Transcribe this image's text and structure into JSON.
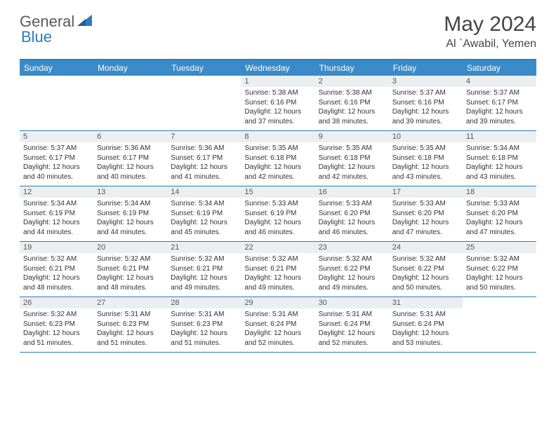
{
  "logo": {
    "text1": "General",
    "text2": "Blue"
  },
  "title": "May 2024",
  "location": "Al `Awabil, Yemen",
  "day_headers": [
    "Sunday",
    "Monday",
    "Tuesday",
    "Wednesday",
    "Thursday",
    "Friday",
    "Saturday"
  ],
  "header_bg": "#3b8bc9",
  "border_color": "#2b7bbf",
  "daynum_bg": "#eceff2",
  "weeks": [
    [
      {
        "n": "",
        "sr": "",
        "ss": "",
        "dl": ""
      },
      {
        "n": "",
        "sr": "",
        "ss": "",
        "dl": ""
      },
      {
        "n": "",
        "sr": "",
        "ss": "",
        "dl": ""
      },
      {
        "n": "1",
        "sr": "5:38 AM",
        "ss": "6:16 PM",
        "dl": "12 hours and 37 minutes."
      },
      {
        "n": "2",
        "sr": "5:38 AM",
        "ss": "6:16 PM",
        "dl": "12 hours and 38 minutes."
      },
      {
        "n": "3",
        "sr": "5:37 AM",
        "ss": "6:16 PM",
        "dl": "12 hours and 39 minutes."
      },
      {
        "n": "4",
        "sr": "5:37 AM",
        "ss": "6:17 PM",
        "dl": "12 hours and 39 minutes."
      }
    ],
    [
      {
        "n": "5",
        "sr": "5:37 AM",
        "ss": "6:17 PM",
        "dl": "12 hours and 40 minutes."
      },
      {
        "n": "6",
        "sr": "5:36 AM",
        "ss": "6:17 PM",
        "dl": "12 hours and 40 minutes."
      },
      {
        "n": "7",
        "sr": "5:36 AM",
        "ss": "6:17 PM",
        "dl": "12 hours and 41 minutes."
      },
      {
        "n": "8",
        "sr": "5:35 AM",
        "ss": "6:18 PM",
        "dl": "12 hours and 42 minutes."
      },
      {
        "n": "9",
        "sr": "5:35 AM",
        "ss": "6:18 PM",
        "dl": "12 hours and 42 minutes."
      },
      {
        "n": "10",
        "sr": "5:35 AM",
        "ss": "6:18 PM",
        "dl": "12 hours and 43 minutes."
      },
      {
        "n": "11",
        "sr": "5:34 AM",
        "ss": "6:18 PM",
        "dl": "12 hours and 43 minutes."
      }
    ],
    [
      {
        "n": "12",
        "sr": "5:34 AM",
        "ss": "6:19 PM",
        "dl": "12 hours and 44 minutes."
      },
      {
        "n": "13",
        "sr": "5:34 AM",
        "ss": "6:19 PM",
        "dl": "12 hours and 44 minutes."
      },
      {
        "n": "14",
        "sr": "5:34 AM",
        "ss": "6:19 PM",
        "dl": "12 hours and 45 minutes."
      },
      {
        "n": "15",
        "sr": "5:33 AM",
        "ss": "6:19 PM",
        "dl": "12 hours and 46 minutes."
      },
      {
        "n": "16",
        "sr": "5:33 AM",
        "ss": "6:20 PM",
        "dl": "12 hours and 46 minutes."
      },
      {
        "n": "17",
        "sr": "5:33 AM",
        "ss": "6:20 PM",
        "dl": "12 hours and 47 minutes."
      },
      {
        "n": "18",
        "sr": "5:33 AM",
        "ss": "6:20 PM",
        "dl": "12 hours and 47 minutes."
      }
    ],
    [
      {
        "n": "19",
        "sr": "5:32 AM",
        "ss": "6:21 PM",
        "dl": "12 hours and 48 minutes."
      },
      {
        "n": "20",
        "sr": "5:32 AM",
        "ss": "6:21 PM",
        "dl": "12 hours and 48 minutes."
      },
      {
        "n": "21",
        "sr": "5:32 AM",
        "ss": "6:21 PM",
        "dl": "12 hours and 49 minutes."
      },
      {
        "n": "22",
        "sr": "5:32 AM",
        "ss": "6:21 PM",
        "dl": "12 hours and 49 minutes."
      },
      {
        "n": "23",
        "sr": "5:32 AM",
        "ss": "6:22 PM",
        "dl": "12 hours and 49 minutes."
      },
      {
        "n": "24",
        "sr": "5:32 AM",
        "ss": "6:22 PM",
        "dl": "12 hours and 50 minutes."
      },
      {
        "n": "25",
        "sr": "5:32 AM",
        "ss": "6:22 PM",
        "dl": "12 hours and 50 minutes."
      }
    ],
    [
      {
        "n": "26",
        "sr": "5:32 AM",
        "ss": "6:23 PM",
        "dl": "12 hours and 51 minutes."
      },
      {
        "n": "27",
        "sr": "5:31 AM",
        "ss": "6:23 PM",
        "dl": "12 hours and 51 minutes."
      },
      {
        "n": "28",
        "sr": "5:31 AM",
        "ss": "6:23 PM",
        "dl": "12 hours and 51 minutes."
      },
      {
        "n": "29",
        "sr": "5:31 AM",
        "ss": "6:24 PM",
        "dl": "12 hours and 52 minutes."
      },
      {
        "n": "30",
        "sr": "5:31 AM",
        "ss": "6:24 PM",
        "dl": "12 hours and 52 minutes."
      },
      {
        "n": "31",
        "sr": "5:31 AM",
        "ss": "6:24 PM",
        "dl": "12 hours and 53 minutes."
      },
      {
        "n": "",
        "sr": "",
        "ss": "",
        "dl": ""
      }
    ]
  ],
  "labels": {
    "sunrise": "Sunrise:",
    "sunset": "Sunset:",
    "daylight": "Daylight:"
  }
}
